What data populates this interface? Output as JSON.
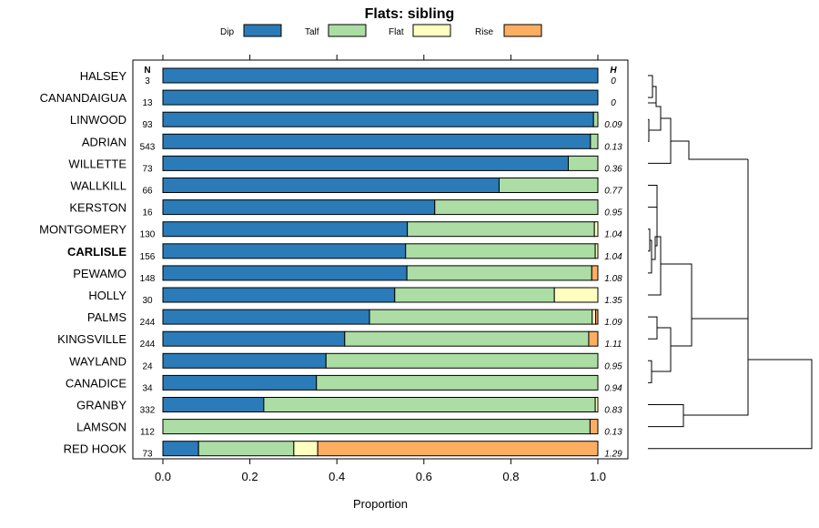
{
  "chart_data": {
    "type": "bar",
    "orientation": "horizontal-stacked",
    "title": "Flats: sibling",
    "xlabel": "Proportion",
    "ylabel": "",
    "xlim": [
      0,
      1
    ],
    "xticks": [
      "0.0",
      "0.2",
      "0.4",
      "0.6",
      "0.8",
      "1.0"
    ],
    "legend": [
      {
        "name": "Dip",
        "color": "#2b7bb9"
      },
      {
        "name": "Talf",
        "color": "#abdda4"
      },
      {
        "name": "Flat",
        "color": "#ffffbf"
      },
      {
        "name": "Rise",
        "color": "#fdae61"
      }
    ],
    "n_header": "N",
    "h_header": "H",
    "highlight": "CARLISLE",
    "rows": [
      {
        "name": "HALSEY",
        "n": "3",
        "h": "0",
        "values": [
          1.0,
          0,
          0,
          0
        ]
      },
      {
        "name": "CANANDAIGUA",
        "n": "13",
        "h": "0",
        "values": [
          1.0,
          0,
          0,
          0
        ]
      },
      {
        "name": "LINWOOD",
        "n": "93",
        "h": "0.09",
        "values": [
          0.99,
          0.01,
          0,
          0
        ]
      },
      {
        "name": "ADRIAN",
        "n": "543",
        "h": "0.13",
        "values": [
          0.983,
          0.017,
          0,
          0
        ]
      },
      {
        "name": "WILLETTE",
        "n": "73",
        "h": "0.36",
        "values": [
          0.932,
          0.068,
          0,
          0
        ]
      },
      {
        "name": "WALLKILL",
        "n": "66",
        "h": "0.77",
        "values": [
          0.773,
          0.227,
          0,
          0
        ]
      },
      {
        "name": "KERSTON",
        "n": "16",
        "h": "0.95",
        "values": [
          0.625,
          0.375,
          0,
          0
        ]
      },
      {
        "name": "MONTGOMERY",
        "n": "130",
        "h": "1.04",
        "values": [
          0.562,
          0.43,
          0.008,
          0
        ]
      },
      {
        "name": "CARLISLE",
        "n": "156",
        "h": "1.04",
        "values": [
          0.558,
          0.436,
          0.006,
          0
        ]
      },
      {
        "name": "PEWAMO",
        "n": "148",
        "h": "1.08",
        "values": [
          0.561,
          0.425,
          0.0,
          0.014
        ]
      },
      {
        "name": "HOLLY",
        "n": "30",
        "h": "1.35",
        "values": [
          0.533,
          0.367,
          0.1,
          0
        ]
      },
      {
        "name": "PALMS",
        "n": "244",
        "h": "1.09",
        "values": [
          0.475,
          0.512,
          0.008,
          0.005
        ]
      },
      {
        "name": "KINGSVILLE",
        "n": "244",
        "h": "1.11",
        "values": [
          0.418,
          0.561,
          0.0,
          0.021
        ]
      },
      {
        "name": "WAYLAND",
        "n": "24",
        "h": "0.95",
        "values": [
          0.375,
          0.625,
          0,
          0
        ]
      },
      {
        "name": "CANADICE",
        "n": "34",
        "h": "0.94",
        "values": [
          0.353,
          0.647,
          0,
          0
        ]
      },
      {
        "name": "GRANBY",
        "n": "332",
        "h": "0.83",
        "values": [
          0.232,
          0.762,
          0.006,
          0
        ]
      },
      {
        "name": "LAMSON",
        "n": "112",
        "h": "0.13",
        "values": [
          0.0,
          0.982,
          0.0,
          0.018
        ]
      },
      {
        "name": "RED HOOK",
        "n": "73",
        "h": "1.29",
        "values": [
          0.082,
          0.219,
          0.055,
          0.644
        ]
      }
    ]
  }
}
